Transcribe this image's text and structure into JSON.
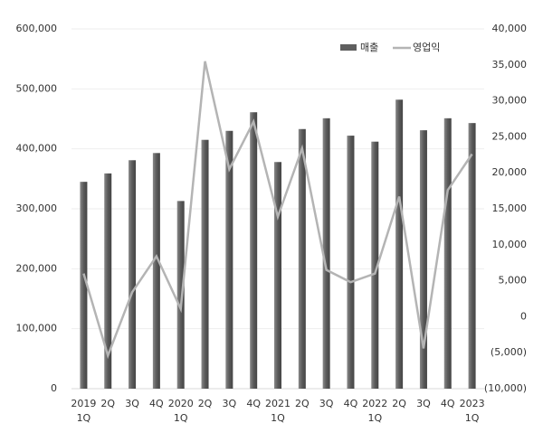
{
  "chart_data": {
    "type": "bar_line",
    "categories": [
      "1Q",
      "2Q",
      "3Q",
      "4Q",
      "1Q",
      "2Q",
      "3Q",
      "4Q",
      "1Q",
      "2Q",
      "3Q",
      "4Q",
      "1Q",
      "2Q",
      "3Q",
      "4Q",
      "1Q"
    ],
    "years": [
      "2019",
      null,
      null,
      null,
      "2020",
      null,
      null,
      null,
      "2021",
      null,
      null,
      null,
      "2022",
      null,
      null,
      null,
      "2023"
    ],
    "series": [
      {
        "name": "매출",
        "color": "#5f5f5f",
        "type": "bar",
        "values": [
          345000,
          359000,
          381000,
          393000,
          313000,
          415000,
          430000,
          461000,
          378000,
          433000,
          451000,
          422000,
          412000,
          482000,
          431000,
          451000,
          443000
        ]
      },
      {
        "name": "영업익",
        "color": "#b4b4b4",
        "type": "line",
        "axis": "y2",
        "values": [
          6000,
          -5400,
          3400,
          8400,
          1100,
          35500,
          20500,
          27100,
          13900,
          23400,
          6500,
          4800,
          6000,
          16700,
          -4400,
          17600,
          22600
        ]
      }
    ],
    "ylim": [
      0,
      600000
    ],
    "yticks": [
      {
        "value": 0,
        "label": "0"
      },
      {
        "value": 100000,
        "label": "100,000"
      },
      {
        "value": 200000,
        "label": "200,000"
      },
      {
        "value": 300000,
        "label": "300,000"
      },
      {
        "value": 400000,
        "label": "400,000"
      },
      {
        "value": 500000,
        "label": "500,000"
      },
      {
        "value": 600000,
        "label": "600,000"
      }
    ],
    "y2lim": [
      -10000,
      40000
    ],
    "y2ticks": [
      {
        "value": -10000,
        "label": "(10,000)"
      },
      {
        "value": -5000,
        "label": "(5,000)"
      },
      {
        "value": 0,
        "label": "0"
      },
      {
        "value": 5000,
        "label": "5,000"
      },
      {
        "value": 10000,
        "label": "10,000"
      },
      {
        "value": 15000,
        "label": "15,000"
      },
      {
        "value": 20000,
        "label": "20,000"
      },
      {
        "value": 25000,
        "label": "25,000"
      },
      {
        "value": 30000,
        "label": "30,000"
      },
      {
        "value": 35000,
        "label": "35,000"
      },
      {
        "value": 40000,
        "label": "40,000"
      }
    ],
    "grid": true,
    "axis_label_color": "#1f3864",
    "negative_color": "#c00000"
  }
}
